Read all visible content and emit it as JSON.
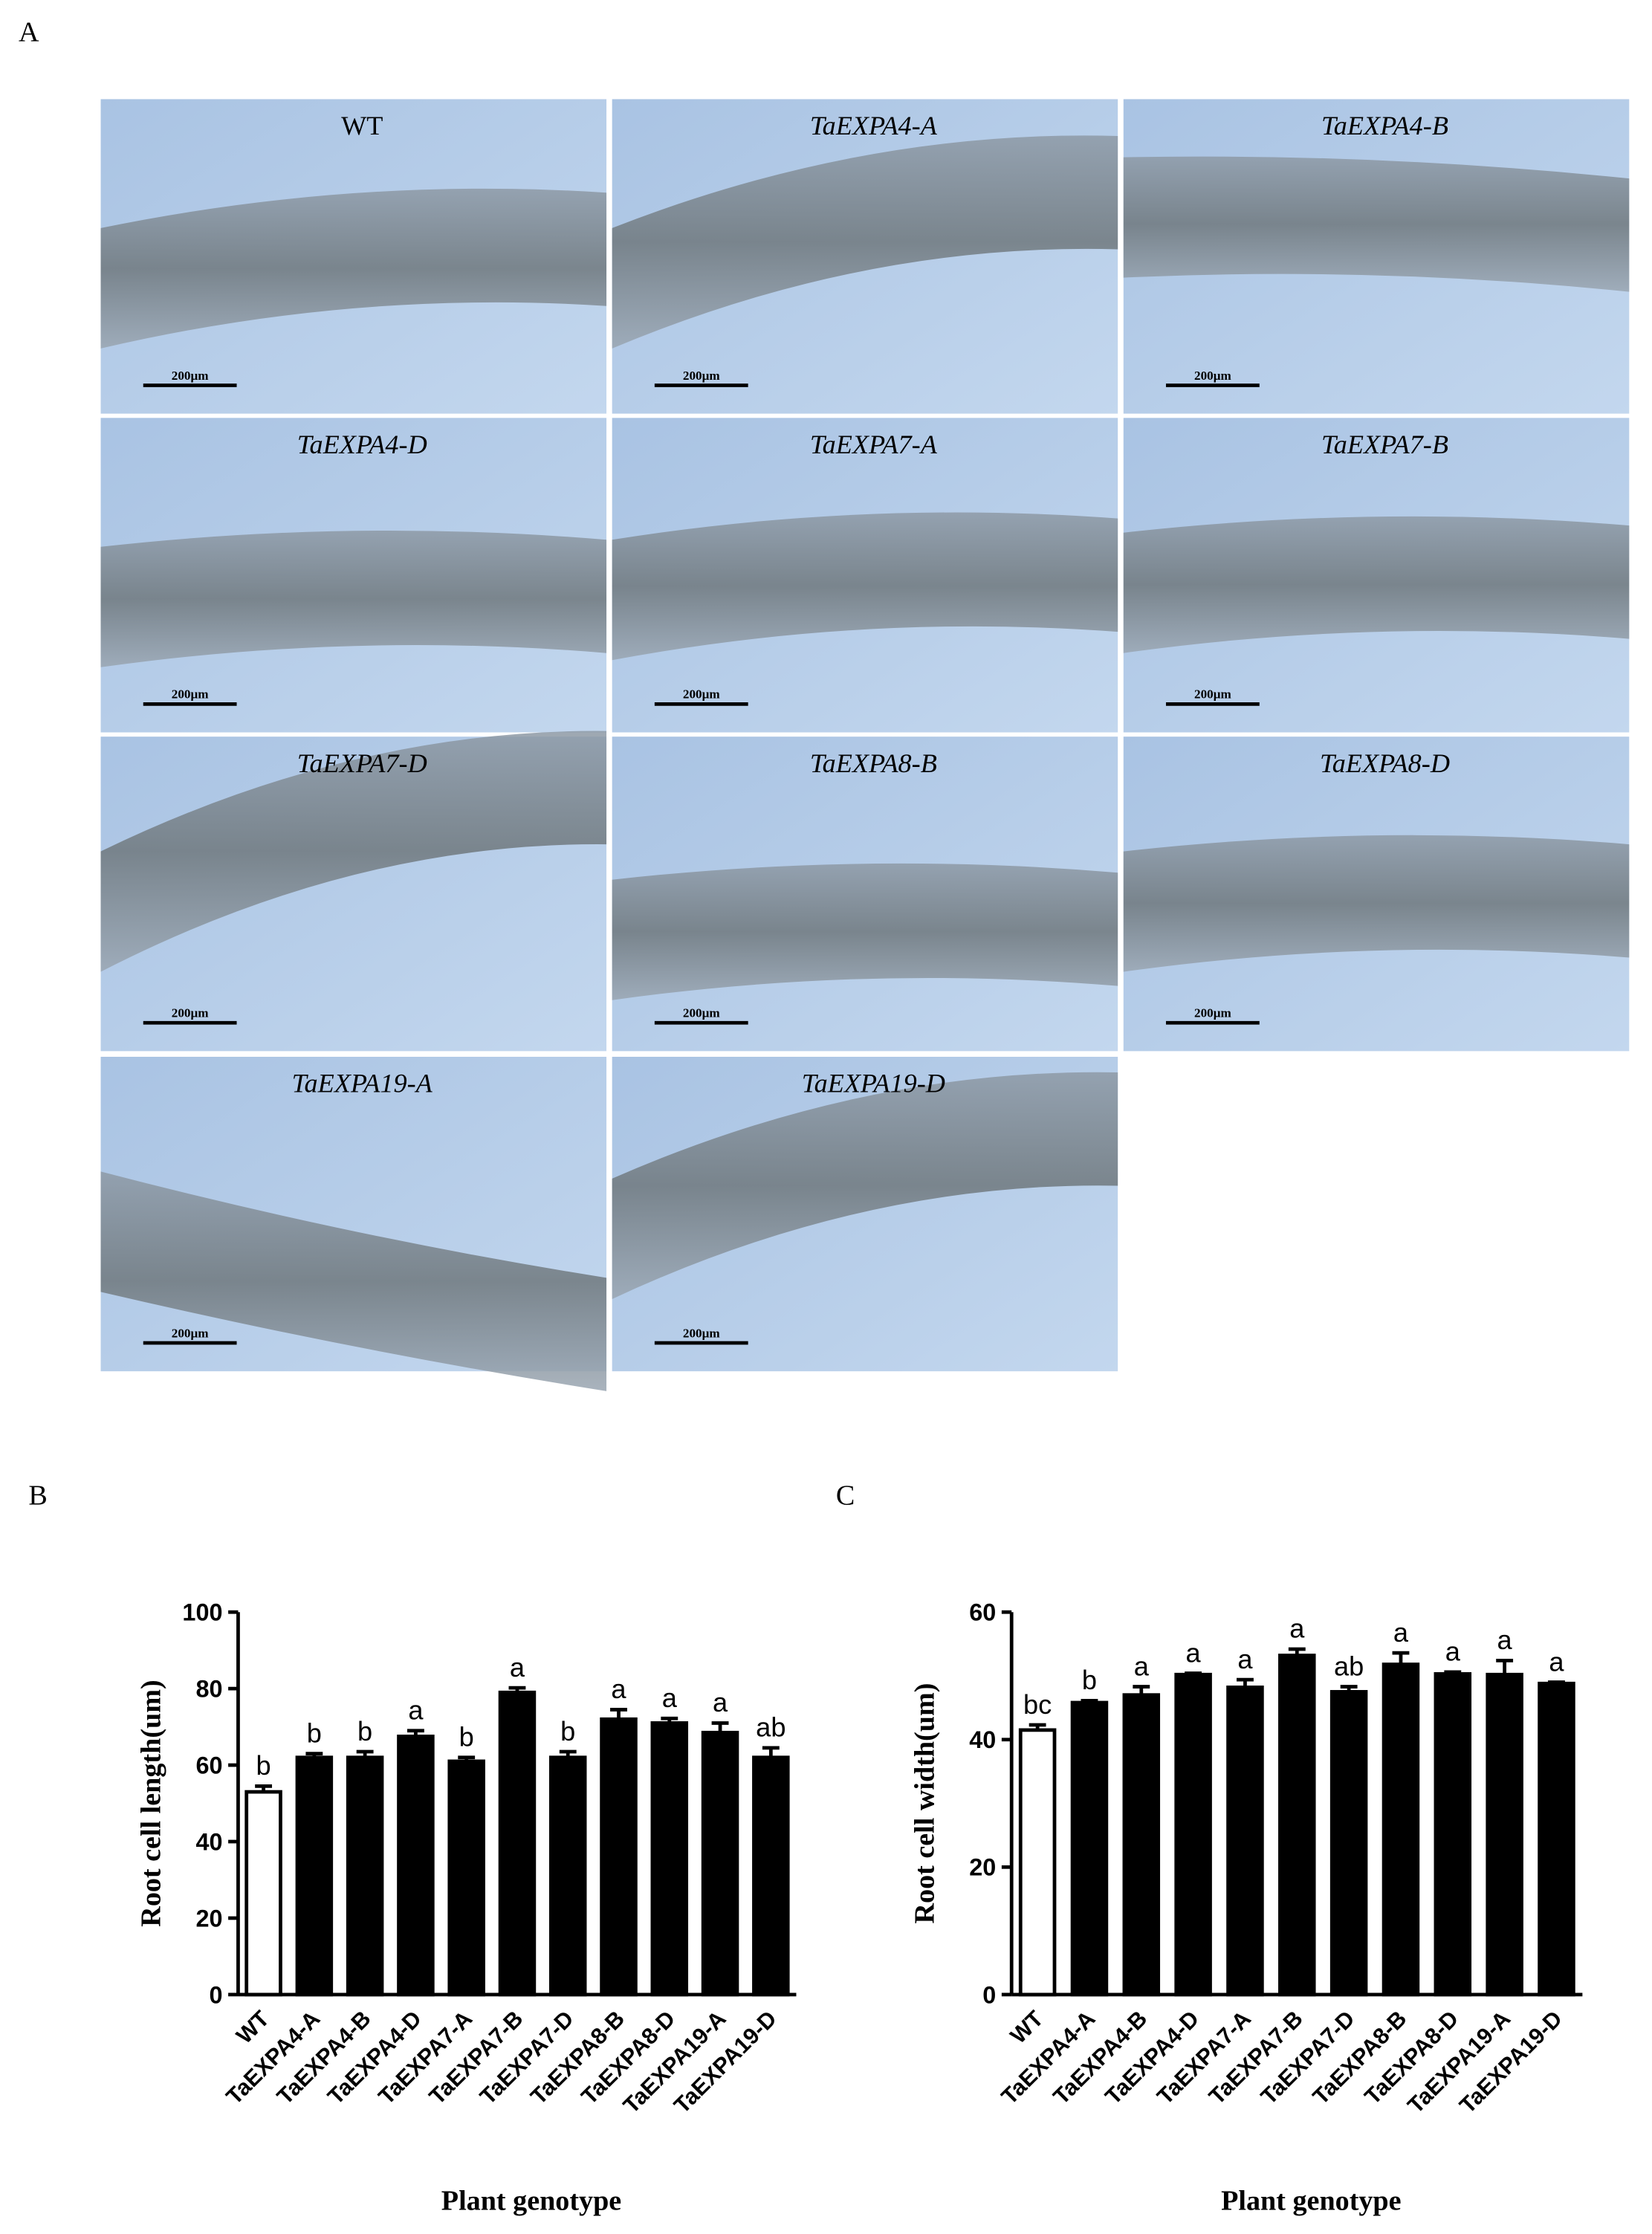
{
  "panel_a": {
    "label": "A",
    "images": [
      {
        "title": "WT",
        "scale_bar": "200μm"
      },
      {
        "title": "TaEXPA4-A",
        "scale_bar": "200μm"
      },
      {
        "title": "TaEXPA4-B",
        "scale_bar": "200μm"
      },
      {
        "title": "TaEXPA4-D",
        "scale_bar": "200μm"
      },
      {
        "title": "TaEXPA7-A",
        "scale_bar": "200μm"
      },
      {
        "title": "TaEXPA7-B",
        "scale_bar": "200μm"
      },
      {
        "title": "TaEXPA7-D",
        "scale_bar": "200μm"
      },
      {
        "title": "TaEXPA8-B",
        "scale_bar": "200μm"
      },
      {
        "title": "TaEXPA8-D",
        "scale_bar": "200μm"
      },
      {
        "title": "TaEXPA19-A",
        "scale_bar": "200μm"
      },
      {
        "title": "TaEXPA19-D",
        "scale_bar": "200μm"
      }
    ]
  },
  "chart_data": [
    {
      "type": "bar",
      "panel_label": "B",
      "x_label": "Plant genotype",
      "y_label": "Root cell length(um)",
      "categories": [
        "WT",
        "TaEXPA4-A",
        "TaEXPA4-B",
        "TaEXPA4-D",
        "TaEXPA7-A",
        "TaEXPA7-B",
        "TaEXPA7-D",
        "TaEXPA8-B",
        "TaEXPA8-D",
        "TaEXPA19-A",
        "TaEXPA19-D"
      ],
      "values": [
        53,
        62,
        62,
        67.5,
        61,
        79,
        62,
        72,
        71,
        68.5,
        62
      ],
      "errors": [
        1.5,
        1,
        1.5,
        1.5,
        1,
        1.2,
        1.5,
        2.5,
        1.2,
        2.5,
        2.5
      ],
      "annotations": [
        "b",
        "b",
        "b",
        "a",
        "b",
        "a",
        "b",
        "a",
        "a",
        "a",
        "ab"
      ],
      "colors": [
        "#ffffff",
        "#000000",
        "#000000",
        "#000000",
        "#000000",
        "#000000",
        "#000000",
        "#000000",
        "#000000",
        "#000000",
        "#000000"
      ],
      "ylim": [
        0,
        100
      ],
      "yticks": [
        0,
        20,
        40,
        60,
        80,
        100
      ]
    },
    {
      "type": "bar",
      "panel_label": "C",
      "x_label": "Plant genotype",
      "y_label": "Root cell width(um)",
      "categories": [
        "WT",
        "TaEXPA4-A",
        "TaEXPA4-B",
        "TaEXPA4-D",
        "TaEXPA7-A",
        "TaEXPA7-B",
        "TaEXPA7-D",
        "TaEXPA8-B",
        "TaEXPA8-D",
        "TaEXPA19-A",
        "TaEXPA19-D"
      ],
      "values": [
        41.5,
        45.8,
        47,
        50.2,
        48.2,
        53.2,
        47.5,
        51.8,
        50.3,
        50.2,
        48.8
      ],
      "errors": [
        0.8,
        0.3,
        1.3,
        0.2,
        1.2,
        1,
        0.8,
        1.8,
        0.3,
        2.2,
        0.2
      ],
      "annotations": [
        "bc",
        "b",
        "a",
        "a",
        "a",
        "a",
        "ab",
        "a",
        "a",
        "a",
        "a"
      ],
      "colors": [
        "#ffffff",
        "#000000",
        "#000000",
        "#000000",
        "#000000",
        "#000000",
        "#000000",
        "#000000",
        "#000000",
        "#000000",
        "#000000"
      ],
      "ylim": [
        0,
        60
      ],
      "yticks": [
        0,
        20,
        40,
        60
      ]
    }
  ]
}
